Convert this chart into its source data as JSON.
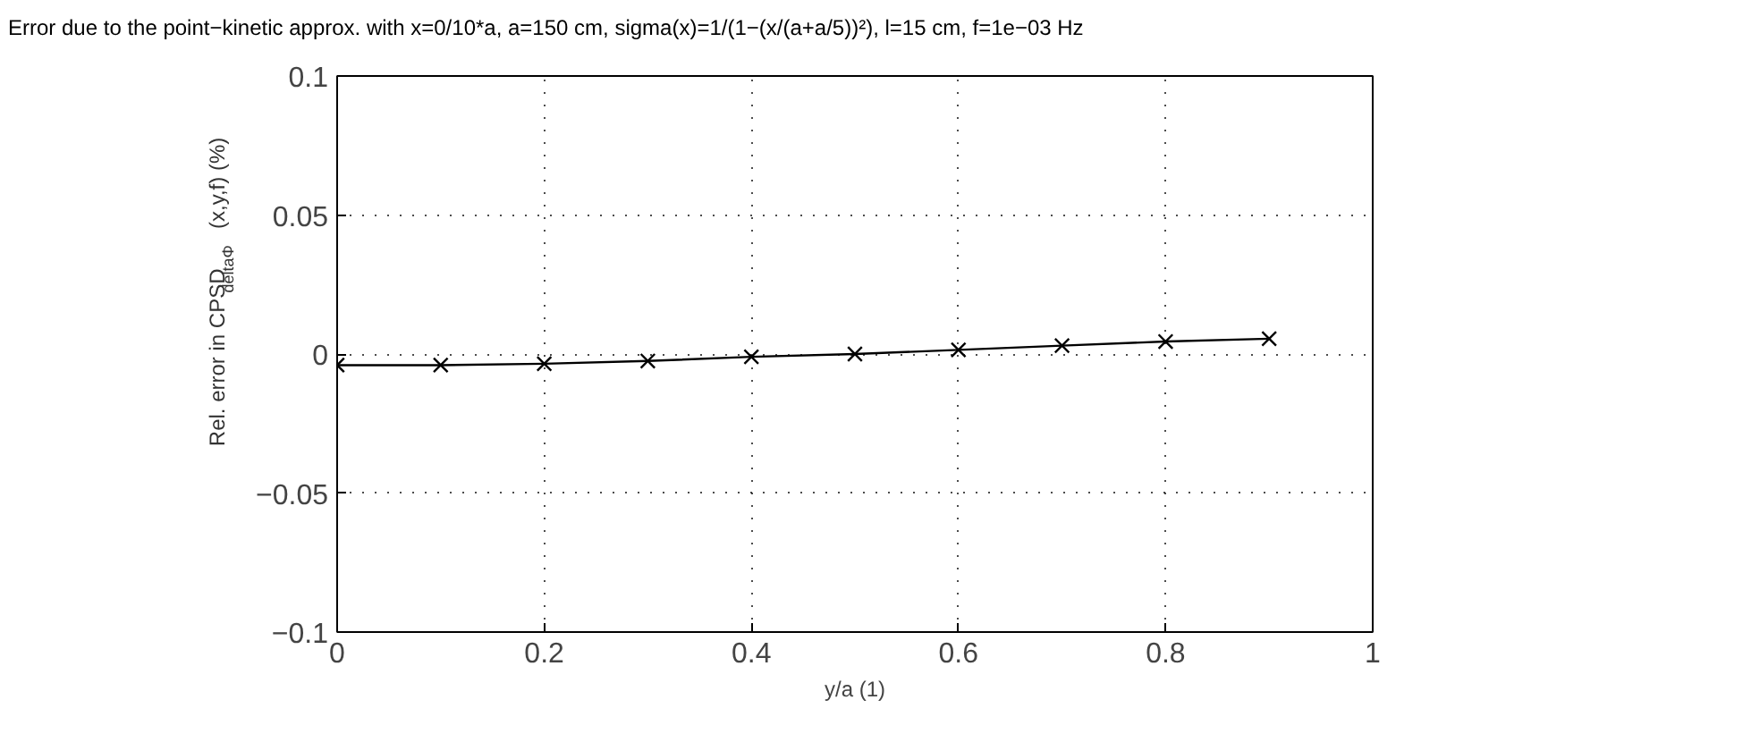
{
  "chart_data": {
    "type": "line",
    "title": "Error due to the point−kinetic approx. with x=0/10*a, a=150 cm, sigma(x)=1/(1−(x/(a+a/5))²), l=15 cm, f=1e−03 Hz",
    "xlabel": "y/a (1)",
    "ylabel": "Rel. error in CPSD$_{deltaΦ}$(x,y,f) (%)",
    "x": [
      0,
      0.1,
      0.2,
      0.3,
      0.4,
      0.5,
      0.6,
      0.7,
      0.8,
      0.9
    ],
    "series": [
      {
        "color": "#000000",
        "values": [
          -0.004,
          -0.004,
          -0.0035,
          -0.0025,
          -0.001,
          0.0,
          0.0015,
          0.003,
          0.0045,
          0.0055
        ]
      }
    ],
    "xlim": [
      0,
      1
    ],
    "ylim": [
      -0.1,
      0.1
    ],
    "xticks": [
      0,
      0.2,
      0.4,
      0.6,
      0.8,
      1
    ],
    "yticks": [
      -0.1,
      -0.05,
      0,
      0.05,
      0.1
    ],
    "grid": true,
    "marker": "cross",
    "line_style": "solid"
  }
}
